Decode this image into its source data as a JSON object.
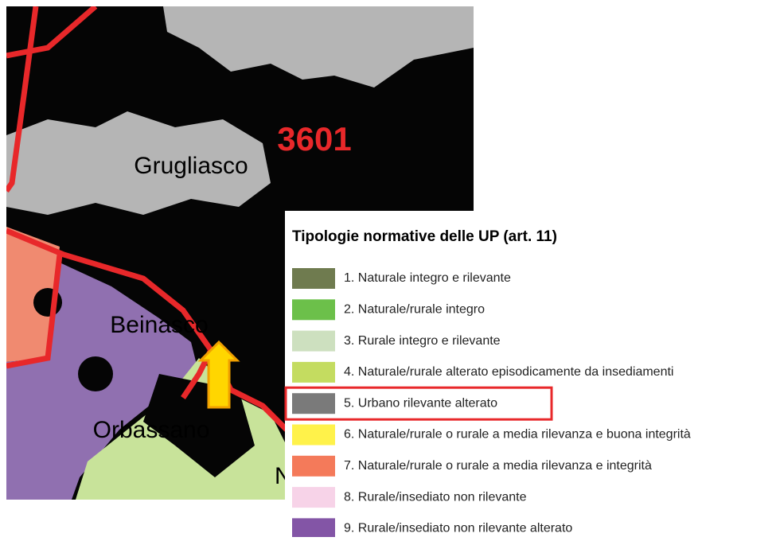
{
  "map": {
    "labels": [
      "3601",
      "Grugliasco",
      "Beinasco",
      "Orbassano",
      "N"
    ]
  },
  "legend": {
    "title": "Tipologie normative delle UP (art. 11)",
    "highlighted": 4,
    "items": [
      {
        "label": "1. Naturale integro e rilevante",
        "color": "#6f7b4f"
      },
      {
        "label": "2. Naturale/rurale integro",
        "color": "#6cc04a"
      },
      {
        "label": "3. Rurale integro e rilevante",
        "color": "#cde0bf"
      },
      {
        "label": "4. Naturale/rurale alterato episodicamente da insediamenti",
        "color": "#c4dc60"
      },
      {
        "label": "5. Urbano rilevante alterato",
        "color": "#7a7a7a"
      },
      {
        "label": "6. Naturale/rurale o rurale a media rilevanza e buona integrità",
        "color": "#fff24a"
      },
      {
        "label": "7. Naturale/rurale o rurale a media rilevanza e integrità",
        "color": "#f47a5a"
      },
      {
        "label": "8. Rurale/insediato non rilevante",
        "color": "#f7d3e8"
      },
      {
        "label": "9. Rurale/insediato non rilevante alterato",
        "color": "#8355a6"
      }
    ]
  }
}
